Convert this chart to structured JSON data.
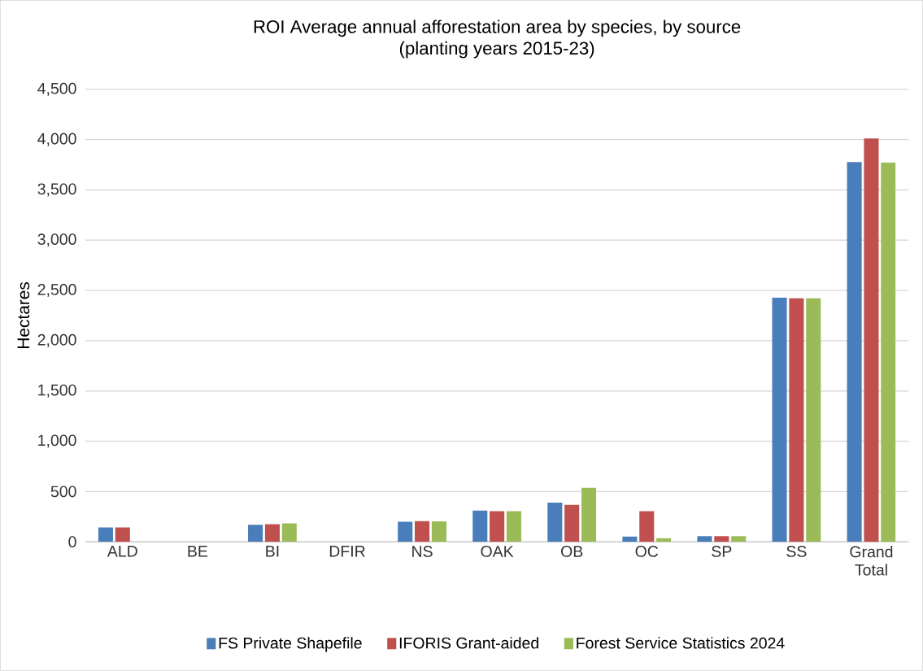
{
  "chart_data": {
    "type": "bar",
    "title": "ROI Average annual afforestation area by species, by source",
    "subtitle": "(planting years 2015-23)",
    "ylabel": "Hectares",
    "categories": [
      "ALD",
      "BE",
      "BI",
      "DFIR",
      "NS",
      "OAK",
      "OB",
      "OC",
      "SP",
      "SS",
      "Grand Total"
    ],
    "series": [
      {
        "name": "FS Private Shapefile",
        "color": "#4a7ebb",
        "values": [
          143,
          0,
          168,
          0,
          200,
          310,
          390,
          52,
          55,
          2427,
          3777
        ]
      },
      {
        "name": "IFORIS Grant-aided",
        "color": "#c0504d",
        "values": [
          143,
          0,
          176,
          0,
          206,
          305,
          368,
          305,
          55,
          2421,
          4011
        ]
      },
      {
        "name": "Forest Service Statistics 2024",
        "color": "#9bbb59",
        "values": [
          0,
          0,
          184,
          0,
          203,
          305,
          538,
          35,
          55,
          2421,
          3772
        ]
      }
    ],
    "ylim": [
      0,
      4500
    ],
    "yticks": [
      {
        "value": 0,
        "label": "0"
      },
      {
        "value": 500,
        "label": "500"
      },
      {
        "value": 1000,
        "label": "1,000"
      },
      {
        "value": 1500,
        "label": "1,500"
      },
      {
        "value": 2000,
        "label": "2,000"
      },
      {
        "value": 2500,
        "label": "2,500"
      },
      {
        "value": 3000,
        "label": "3,000"
      },
      {
        "value": 3500,
        "label": "3,500"
      },
      {
        "value": 4000,
        "label": "4,000"
      },
      {
        "value": 4500,
        "label": "4,500"
      }
    ],
    "grid": "y",
    "legend": "bottom"
  }
}
